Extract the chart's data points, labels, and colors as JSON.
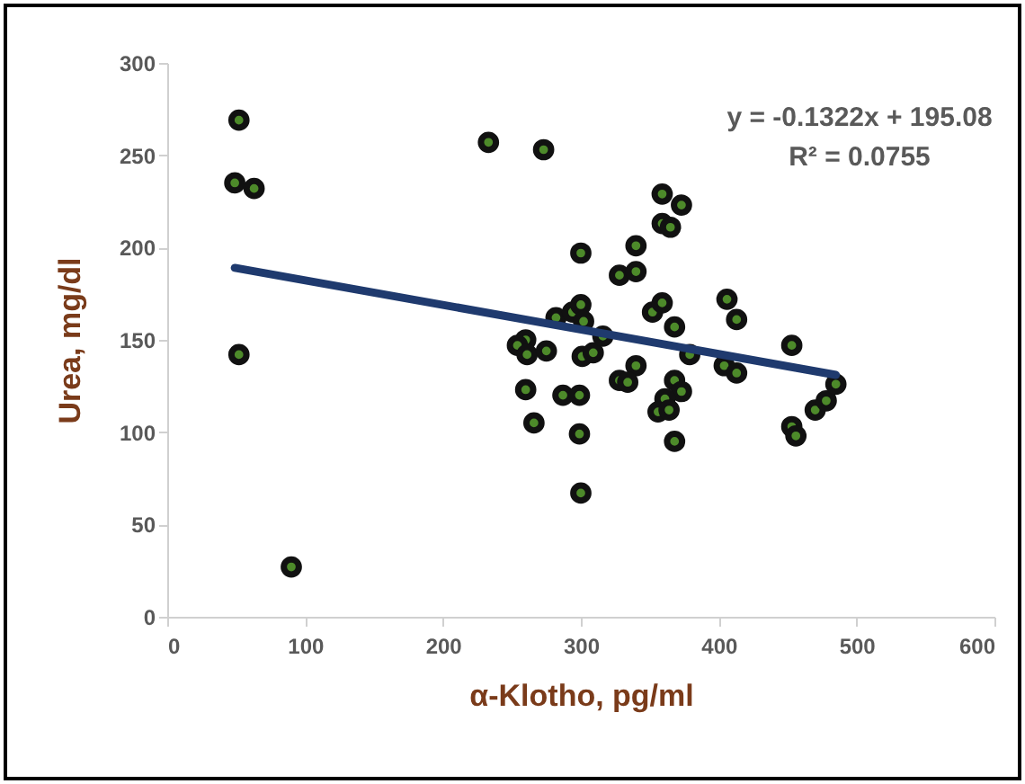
{
  "chart_data": {
    "type": "scatter",
    "xlabel": "α-Klotho, pg/ml",
    "ylabel": "Urea, mg/dl",
    "xlim": [
      0,
      600
    ],
    "xticks": [
      0,
      100,
      200,
      300,
      400,
      500,
      600
    ],
    "ylim": [
      0,
      300
    ],
    "yticks": [
      0,
      50,
      100,
      150,
      200,
      250,
      300
    ],
    "grid": false,
    "annotations": [
      "y = -0.1322x + 195.08",
      "R² = 0.0755"
    ],
    "series": [
      {
        "marker": "circle",
        "color": "#111111",
        "x": [
          52,
          49,
          63,
          52,
          90,
          233,
          273,
          300,
          260,
          254,
          261,
          275,
          282,
          294,
          300,
          302,
          260,
          266,
          287,
          299,
          299,
          300,
          301,
          309,
          316,
          328,
          340,
          340,
          359,
          373,
          359,
          365,
          328,
          340,
          334,
          352,
          359,
          368,
          379,
          368,
          373,
          361,
          356,
          364,
          368,
          406,
          413,
          404,
          413,
          453,
          453,
          456,
          470,
          478,
          485
        ],
        "values": [
          269,
          235,
          232,
          142,
          27,
          257,
          253,
          197,
          150,
          147,
          142,
          144,
          162,
          165,
          169,
          160,
          123,
          105,
          120,
          120,
          99,
          67,
          141,
          143,
          152,
          185,
          187,
          201,
          229,
          223,
          213,
          211,
          128,
          136,
          127,
          165,
          170,
          157,
          142,
          128,
          122,
          118,
          111,
          112,
          95,
          172,
          161,
          136,
          132,
          147,
          103,
          98,
          112,
          117,
          126
        ]
      },
      {
        "type": "line",
        "color": "#1f3a6e",
        "line_style": "solid",
        "x": [
          49,
          485
        ],
        "values": [
          189,
          131
        ]
      }
    ]
  }
}
